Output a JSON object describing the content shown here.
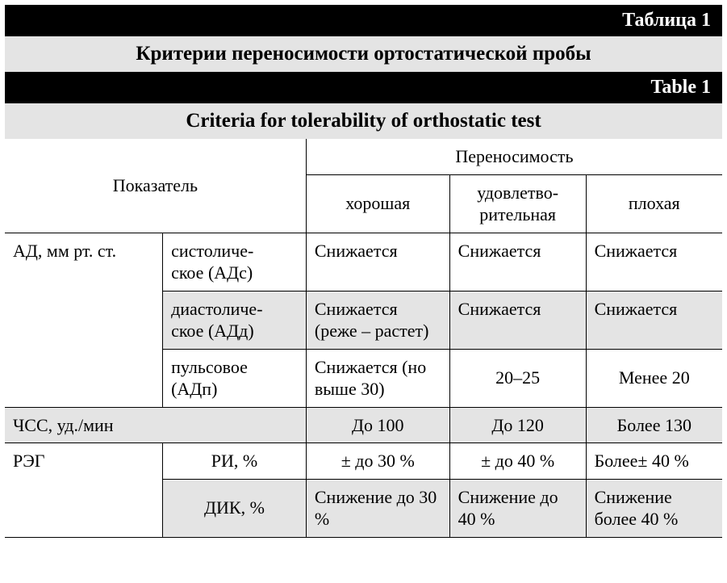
{
  "colors": {
    "black": "#000000",
    "white": "#ffffff",
    "grey": "#e4e4e4",
    "border": "#000000"
  },
  "typography": {
    "family": "serif",
    "label_fontsize": 24,
    "caption_fontsize": 25,
    "body_fontsize": 22
  },
  "header": {
    "label_ru": "Таблица 1",
    "caption_ru": "Критерии переносимости ортостатической пробы",
    "label_en": "Table 1",
    "caption_en": "Criteria for tolerability of orthostatic test"
  },
  "table": {
    "col_widths_pct": [
      22,
      20,
      20,
      19,
      19
    ],
    "head": {
      "indicator": "Показатель",
      "group": "Переносимость",
      "cols": [
        "хорошая",
        "удовлетво-\nрительная",
        "плохая"
      ]
    },
    "rows": [
      {
        "alt": false,
        "r0": "АД, мм рт. ст.",
        "r1": "систоличе-\nское (АДс)",
        "v": [
          "Снижается",
          "Снижается",
          "Снижается"
        ],
        "rowspan0": 3
      },
      {
        "alt": true,
        "r0": null,
        "r1": "диастоличе-\nское (АДд)",
        "v": [
          "Снижается (реже – растет)",
          "Снижается",
          "Снижается"
        ]
      },
      {
        "alt": false,
        "r0": null,
        "r1": "пульсовое (АДп)",
        "v": [
          "Снижается (но выше 30)",
          "20–25",
          "Менее 20"
        ],
        "center": [
          false,
          true,
          true
        ]
      },
      {
        "alt": true,
        "r0": "ЧСС, уд./мин",
        "r1": null,
        "colspan01": 2,
        "v": [
          "До 100",
          "До 120",
          "Более 130"
        ],
        "center": [
          true,
          true,
          true
        ]
      },
      {
        "alt": false,
        "r0": "РЭГ",
        "r1": "РИ, %",
        "v": [
          "± до 30 %",
          "± до 40 %",
          "Более± 40 %"
        ],
        "center": [
          true,
          true,
          false
        ],
        "rowspan0": 2
      },
      {
        "alt": true,
        "r0": null,
        "r1": "ДИК, %",
        "v": [
          "Снижение до 30 %",
          "Снижение до 40 %",
          "Снижение более 40 %"
        ],
        "center": [
          false,
          false,
          false
        ]
      }
    ]
  }
}
